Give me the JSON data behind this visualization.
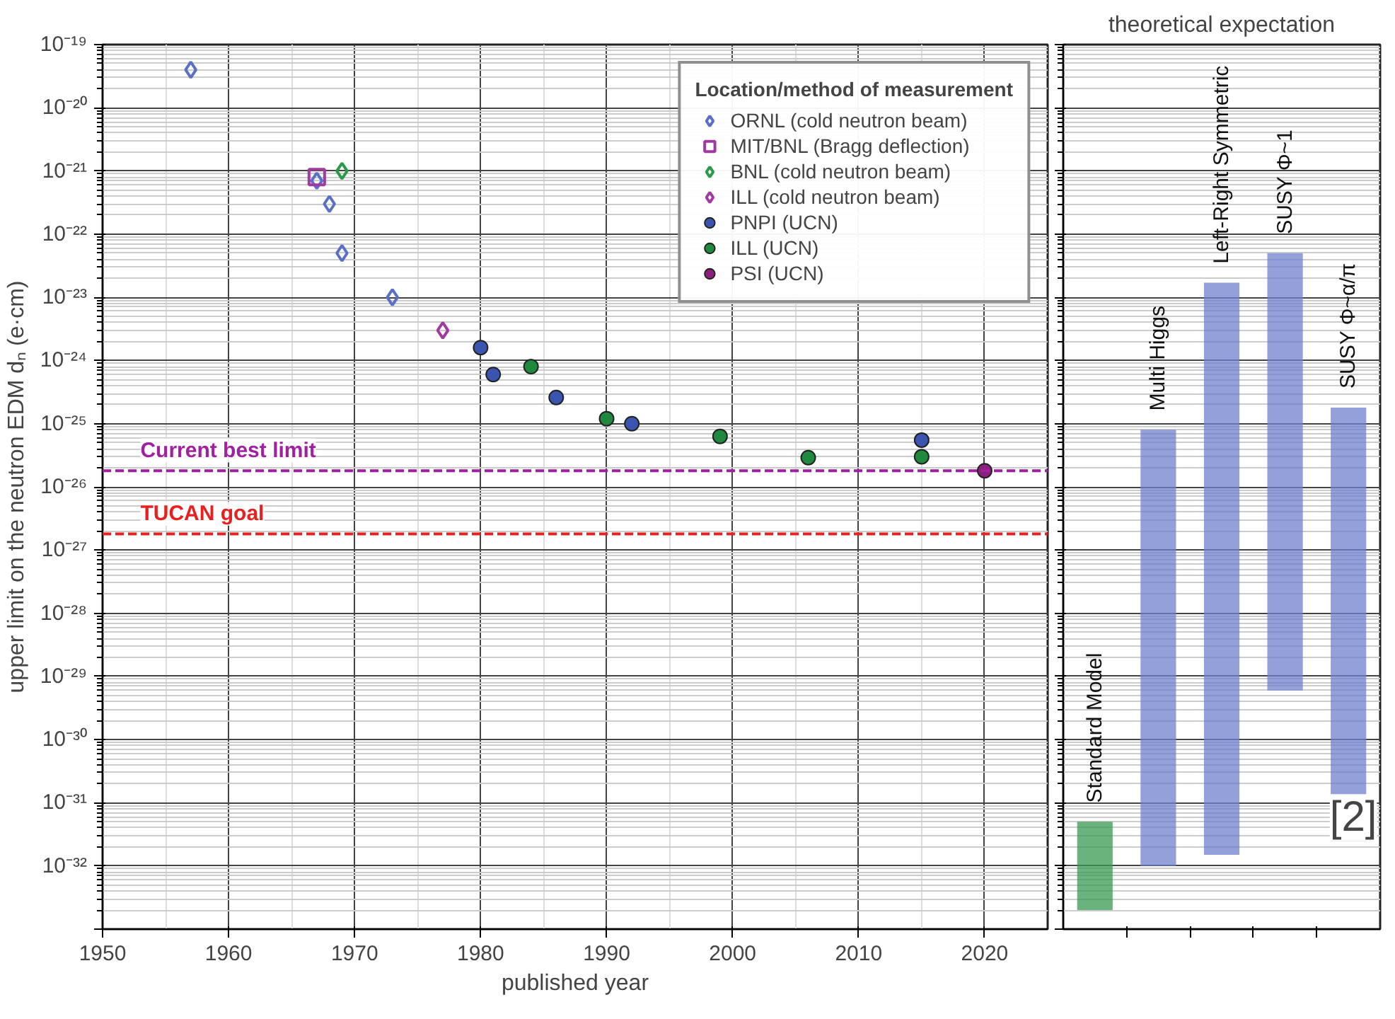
{
  "chart_data": [
    {
      "type": "scatter",
      "xlabel": "published year",
      "ylabel": "upper limit on the neutron EDM dₙ (e·cm)",
      "legend_title": "Location/method of measurement",
      "legend": "top right",
      "grid": true,
      "log": "y",
      "xlim": [
        1950,
        2025
      ],
      "xticks": [
        1950,
        1960,
        1970,
        1980,
        1990,
        2000,
        2010,
        2020
      ],
      "ylim": [
        1e-33,
        1e-19
      ],
      "yticks": [
        {
          "value": 1e-19,
          "label": "10⁻¹⁹"
        },
        {
          "value": 1e-20,
          "label": "10⁻²⁰"
        },
        {
          "value": 1e-21,
          "label": "10⁻²¹"
        },
        {
          "value": 1e-22,
          "label": "10⁻²²"
        },
        {
          "value": 1e-23,
          "label": "10⁻²³"
        },
        {
          "value": 1e-24,
          "label": "10⁻²⁴"
        },
        {
          "value": 1e-25,
          "label": "10⁻²⁵"
        },
        {
          "value": 1e-26,
          "label": "10⁻²⁶"
        },
        {
          "value": 1e-27,
          "label": "10⁻²⁷"
        },
        {
          "value": 1e-28,
          "label": "10⁻²⁸"
        },
        {
          "value": 1e-29,
          "label": "10⁻²⁹"
        },
        {
          "value": 1e-30,
          "label": "10⁻³⁰"
        },
        {
          "value": 1e-31,
          "label": "10⁻³¹"
        },
        {
          "value": 1e-32,
          "label": "10⁻³²"
        },
        {
          "value": 1e-33,
          "label": null
        }
      ],
      "series": [
        {
          "name": "ORNL (cold neutron beam)",
          "color": "#5a70c8",
          "marker": "diamond",
          "x": [
            1957,
            1967,
            1968,
            1969,
            1973
          ],
          "values": [
            4e-20,
            7e-22,
            3e-22,
            5e-23,
            1e-23
          ]
        },
        {
          "name": "MIT/BNL (Bragg deflection)",
          "color": "#a03aa0",
          "marker": "square",
          "x": [
            1967
          ],
          "values": [
            8e-22
          ]
        },
        {
          "name": "BNL (cold neutron beam)",
          "color": "#2a9a4a",
          "marker": "diamond",
          "x": [
            1969
          ],
          "values": [
            1e-21
          ]
        },
        {
          "name": "ILL (cold neutron beam)",
          "color": "#a03aa0",
          "marker": "diamond",
          "x": [
            1977
          ],
          "values": [
            3e-24
          ]
        },
        {
          "name": "PNPI (UCN)",
          "color": "#3a55b0",
          "marker": "circle",
          "x": [
            1980,
            1981,
            1986,
            1992,
            2015
          ],
          "values": [
            1.6e-24,
            6e-25,
            2.6e-25,
            1e-25,
            5.5e-26
          ]
        },
        {
          "name": "ILL (UCN)",
          "color": "#1f8a3e",
          "marker": "circle",
          "x": [
            1984,
            1990,
            1999,
            2006,
            2015
          ],
          "values": [
            8e-25,
            1.2e-25,
            6.3e-26,
            2.9e-26,
            3e-26
          ]
        },
        {
          "name": "PSI (UCN)",
          "color": "#8a1f80",
          "marker": "circle",
          "x": [
            2020
          ],
          "values": [
            1.8e-26
          ]
        }
      ],
      "ref_lines": [
        {
          "axis": "y",
          "value": 1.8e-26,
          "label": "Current best limit",
          "color": "#a020a0",
          "line_style": "dashed"
        },
        {
          "axis": "y",
          "value": 1.8e-27,
          "label": "TUCAN goal",
          "color": "#e82020",
          "line_style": "dashed"
        }
      ]
    },
    {
      "type": "bar",
      "title": "theoretical expectation",
      "log": "y",
      "grid": "y",
      "tick_labels": false,
      "ylim": [
        1e-33,
        1e-19
      ],
      "yticks": [
        1e-19,
        1e-20,
        1e-21,
        1e-22,
        1e-23,
        1e-24,
        1e-25,
        1e-26,
        1e-27,
        1e-28,
        1e-29,
        1e-30,
        1e-31,
        1e-32,
        1e-33
      ],
      "categories": [
        "Standard Model",
        "Multi Higgs",
        "Left-Right Symmetric",
        "SUSY Φ~1",
        "SUSY Φ~α/π"
      ],
      "base": [
        2e-33,
        1e-32,
        1.5e-32,
        6e-30,
        2.5e-32
      ],
      "values": [
        4.8e-32,
        8e-26,
        1.7e-23,
        5e-23,
        1.8e-25
      ],
      "colors": [
        "#3a9a50",
        "#7080cc",
        "#7080cc",
        "#7080cc",
        "#7080cc"
      ],
      "annotations": [
        "[2]"
      ]
    }
  ]
}
